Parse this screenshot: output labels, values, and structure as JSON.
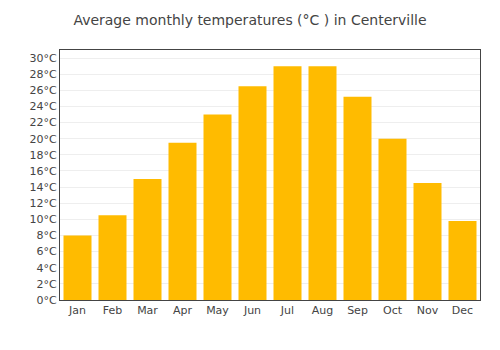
{
  "chart_data": {
    "type": "bar",
    "title": "Average monthly temperatures (°C ) in Centerville",
    "categories": [
      "Jan",
      "Feb",
      "Mar",
      "Apr",
      "May",
      "Jun",
      "Jul",
      "Aug",
      "Sep",
      "Oct",
      "Nov",
      "Dec"
    ],
    "values": [
      8.0,
      10.5,
      15.0,
      19.5,
      23.0,
      26.5,
      29.0,
      29.0,
      25.2,
      20.0,
      14.5,
      9.8
    ],
    "color": "#FFBB00",
    "ylim": [
      0,
      31
    ],
    "yticks": [
      {
        "value": 0,
        "label": "0°C"
      },
      {
        "value": 2,
        "label": "2°C"
      },
      {
        "value": 4,
        "label": "4°C"
      },
      {
        "value": 6,
        "label": "6°C"
      },
      {
        "value": 8,
        "label": "8°C"
      },
      {
        "value": 10,
        "label": "10°C"
      },
      {
        "value": 12,
        "label": "12°C"
      },
      {
        "value": 14,
        "label": "14°C"
      },
      {
        "value": 16,
        "label": "16°C"
      },
      {
        "value": 18,
        "label": "18°C"
      },
      {
        "value": 20,
        "label": "20°C"
      },
      {
        "value": 22,
        "label": "22°C"
      },
      {
        "value": 24,
        "label": "24°C"
      },
      {
        "value": 26,
        "label": "26°C"
      },
      {
        "value": 28,
        "label": "28°C"
      },
      {
        "value": 30,
        "label": "30°C"
      }
    ],
    "grid": true
  }
}
